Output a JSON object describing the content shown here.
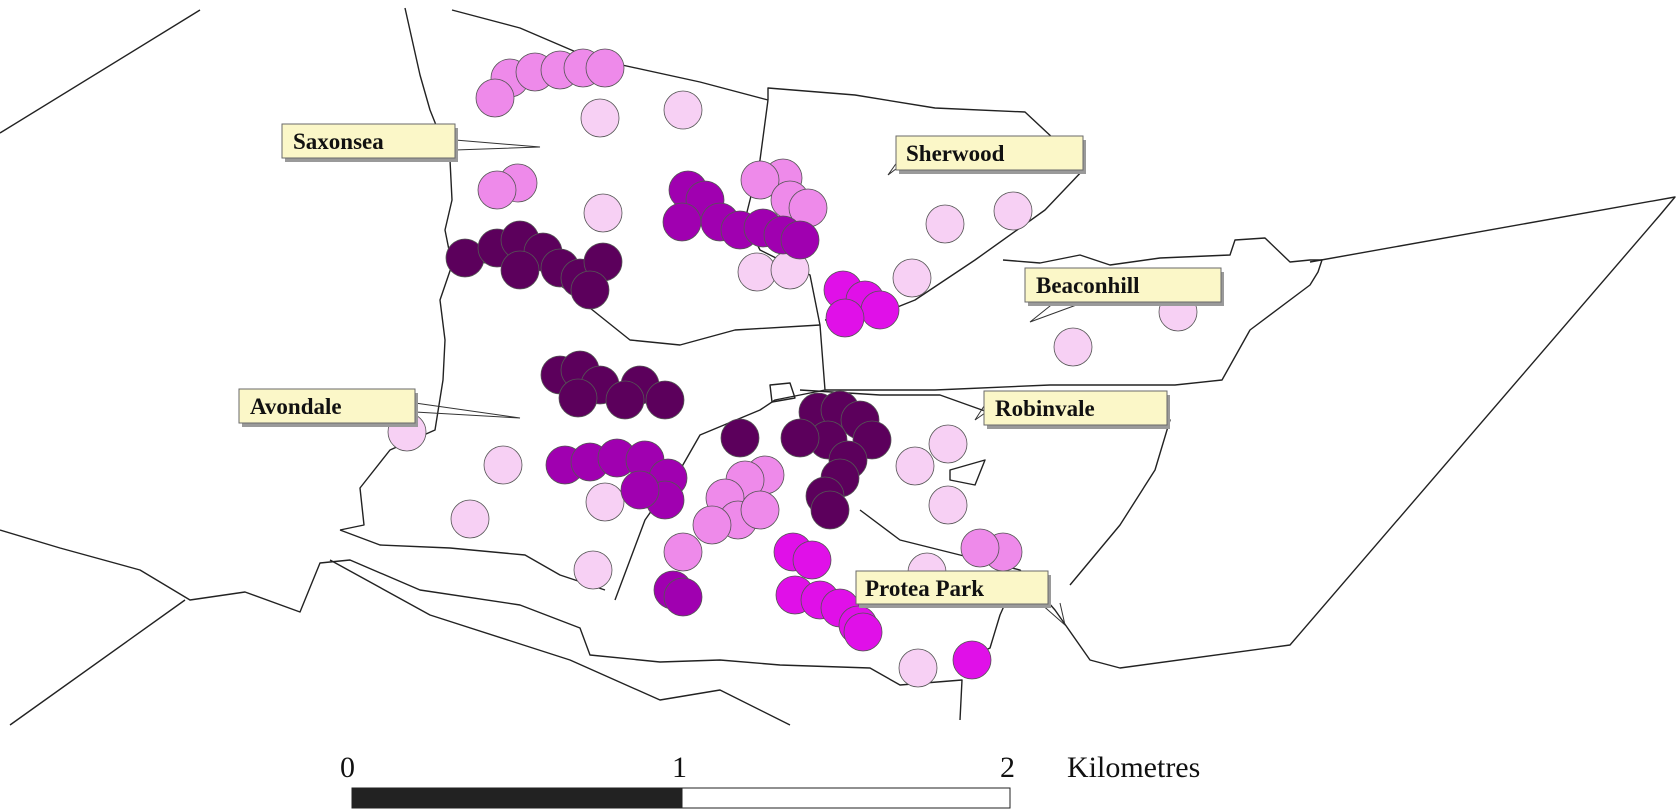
{
  "suburbs": [
    {
      "id": "saxonsea",
      "name": "Saxonsea"
    },
    {
      "id": "sherwood",
      "name": "Sherwood"
    },
    {
      "id": "beaconhill",
      "name": "Beaconhill"
    },
    {
      "id": "avondale",
      "name": "Avondale"
    },
    {
      "id": "robinvale",
      "name": "Robinvale"
    },
    {
      "id": "protea-park",
      "name": "Protea Park"
    }
  ],
  "scale_bar": {
    "ticks": [
      "0",
      "1",
      "2"
    ],
    "unit": "Kilometres"
  },
  "colors": {
    "class_1": "#f7d0f4",
    "class_2": "#ee8aea",
    "class_3": "#e010e8",
    "class_4": "#a000b0",
    "class_5": "#5c005c",
    "callout_fill": "#fbf7c8",
    "boundary": "#222222"
  }
}
